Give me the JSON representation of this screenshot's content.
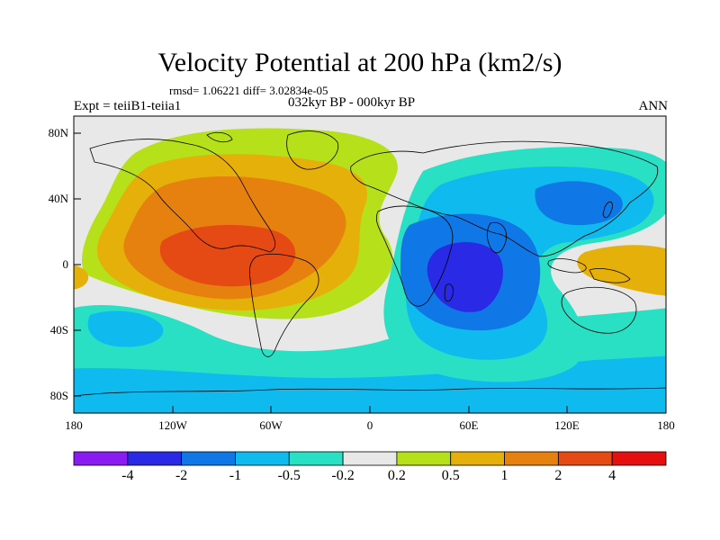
{
  "title": "Velocity Potential at 200 hPa (km2/s)",
  "stats": "rmsd= 1.06221 diff= 3.02834e-05",
  "experiment": "Expt = teiiB1-teiia1",
  "period": "032kyr BP - 000kyr BP",
  "season": "ANN",
  "lat_ticks": [
    "80N",
    "40N",
    "0",
    "40S",
    "80S"
  ],
  "lon_ticks": [
    "180",
    "120W",
    "60W",
    "0",
    "60E",
    "120E",
    "180"
  ],
  "colorbar": {
    "labels": [
      "-4",
      "-2",
      "-1",
      "-0.5",
      "-0.2",
      "0.2",
      "0.5",
      "1",
      "2",
      "4"
    ],
    "colors": [
      "#8a1cf2",
      "#2a2ae6",
      "#0f78e6",
      "#0fbbee",
      "#29e0c4",
      "#e8e8e8",
      "#b5e01a",
      "#e6b00a",
      "#e6800f",
      "#e64a14",
      "#e60f0f"
    ]
  }
}
